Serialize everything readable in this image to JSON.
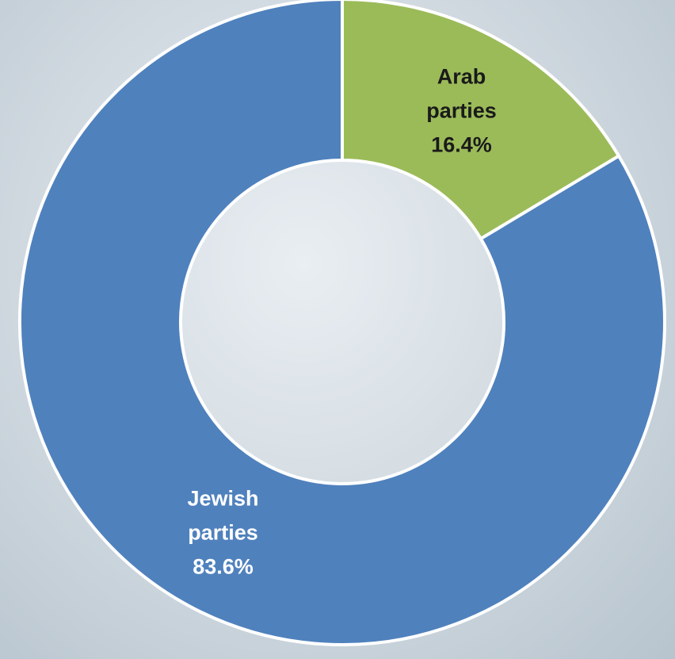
{
  "chart_data": {
    "type": "donut",
    "categories": [
      "Arab parties",
      "Jewish parties"
    ],
    "values": [
      16.4,
      83.6
    ],
    "value_labels": [
      "16.4%",
      "83.6%"
    ],
    "colors": [
      "#9bbb59",
      "#4f81bd"
    ],
    "label_colors": [
      "#1a1a1a",
      "#ffffff"
    ]
  }
}
